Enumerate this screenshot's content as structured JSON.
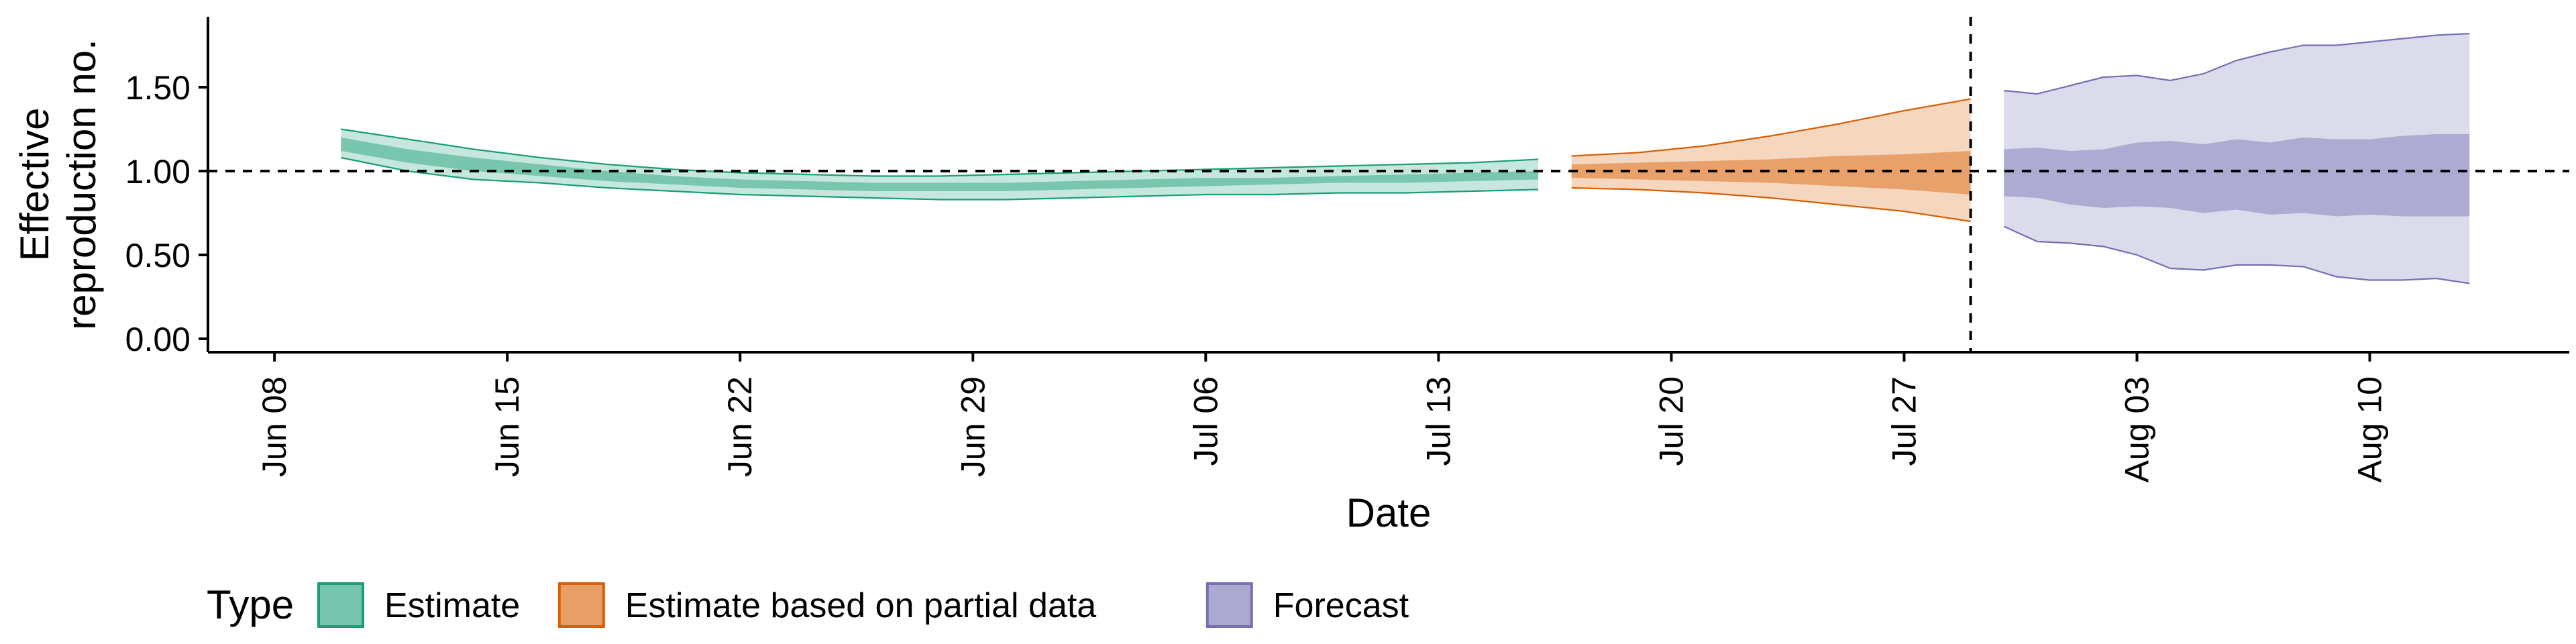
{
  "chart_data": {
    "type": "area",
    "xlabel": "Date",
    "ylabel_lines": [
      "Effective",
      "reproduction no."
    ],
    "x_range": [
      "2020-06-06",
      "2020-08-16"
    ],
    "ylim": [
      -0.08,
      1.92
    ],
    "x_ticks": [
      {
        "date": "2020-06-08",
        "label": "Jun 08"
      },
      {
        "date": "2020-06-15",
        "label": "Jun 15"
      },
      {
        "date": "2020-06-22",
        "label": "Jun 22"
      },
      {
        "date": "2020-06-29",
        "label": "Jun 29"
      },
      {
        "date": "2020-07-06",
        "label": "Jul 06"
      },
      {
        "date": "2020-07-13",
        "label": "Jul 13"
      },
      {
        "date": "2020-07-20",
        "label": "Jul 20"
      },
      {
        "date": "2020-07-27",
        "label": "Jul 27"
      },
      {
        "date": "2020-08-03",
        "label": "Aug 03"
      },
      {
        "date": "2020-08-10",
        "label": "Aug 10"
      }
    ],
    "y_ticks": [
      {
        "value": 0.0,
        "label": "0.00"
      },
      {
        "value": 0.5,
        "label": "0.50"
      },
      {
        "value": 1.0,
        "label": "1.00"
      },
      {
        "value": 1.5,
        "label": "1.50"
      }
    ],
    "reference_hline": 1.0,
    "reference_vline_date": "2020-07-29",
    "grid": false,
    "legend_position": "bottom-left",
    "legend_title": "Type",
    "series": [
      {
        "name": "Estimate",
        "fill": "#1b9e77",
        "x": [
          "2020-06-10",
          "2020-06-12",
          "2020-06-14",
          "2020-06-16",
          "2020-06-18",
          "2020-06-20",
          "2020-06-22",
          "2020-06-24",
          "2020-06-26",
          "2020-06-28",
          "2020-06-30",
          "2020-07-02",
          "2020-07-04",
          "2020-07-06",
          "2020-07-08",
          "2020-07-10",
          "2020-07-12",
          "2020-07-14",
          "2020-07-16"
        ],
        "lower_90": [
          1.08,
          1.0,
          0.95,
          0.93,
          0.9,
          0.88,
          0.86,
          0.85,
          0.84,
          0.83,
          0.83,
          0.84,
          0.85,
          0.86,
          0.86,
          0.87,
          0.87,
          0.88,
          0.89
        ],
        "upper_90": [
          1.25,
          1.19,
          1.13,
          1.08,
          1.04,
          1.01,
          0.99,
          0.98,
          0.97,
          0.97,
          0.98,
          0.99,
          1.0,
          1.01,
          1.02,
          1.03,
          1.04,
          1.05,
          1.07
        ],
        "lower_50": [
          1.12,
          1.05,
          1.0,
          0.97,
          0.94,
          0.92,
          0.9,
          0.89,
          0.88,
          0.88,
          0.88,
          0.89,
          0.9,
          0.91,
          0.92,
          0.93,
          0.93,
          0.94,
          0.95
        ],
        "upper_50": [
          1.2,
          1.13,
          1.08,
          1.04,
          1.0,
          0.97,
          0.95,
          0.94,
          0.93,
          0.93,
          0.93,
          0.94,
          0.95,
          0.96,
          0.96,
          0.97,
          0.98,
          0.99,
          1.0
        ]
      },
      {
        "name": "Estimate based on partial data",
        "fill": "#d95f02",
        "x": [
          "2020-07-17",
          "2020-07-19",
          "2020-07-21",
          "2020-07-23",
          "2020-07-25",
          "2020-07-27",
          "2020-07-29"
        ],
        "lower_90": [
          0.9,
          0.89,
          0.87,
          0.84,
          0.8,
          0.76,
          0.7
        ],
        "upper_90": [
          1.09,
          1.11,
          1.15,
          1.21,
          1.28,
          1.36,
          1.43
        ],
        "lower_50": [
          0.96,
          0.95,
          0.94,
          0.93,
          0.91,
          0.89,
          0.86
        ],
        "upper_50": [
          1.04,
          1.05,
          1.06,
          1.07,
          1.09,
          1.1,
          1.12
        ]
      },
      {
        "name": "Forecast",
        "fill": "#7570b3",
        "x": [
          "2020-07-30",
          "2020-07-31",
          "2020-08-01",
          "2020-08-02",
          "2020-08-03",
          "2020-08-04",
          "2020-08-05",
          "2020-08-06",
          "2020-08-07",
          "2020-08-08",
          "2020-08-09",
          "2020-08-10",
          "2020-08-11",
          "2020-08-12",
          "2020-08-13"
        ],
        "lower_90": [
          0.67,
          0.58,
          0.57,
          0.55,
          0.5,
          0.42,
          0.41,
          0.44,
          0.44,
          0.43,
          0.37,
          0.35,
          0.35,
          0.36,
          0.33
        ],
        "upper_90": [
          1.48,
          1.46,
          1.51,
          1.56,
          1.57,
          1.54,
          1.58,
          1.66,
          1.71,
          1.75,
          1.75,
          1.77,
          1.79,
          1.81,
          1.82
        ],
        "lower_50": [
          0.85,
          0.84,
          0.8,
          0.78,
          0.79,
          0.78,
          0.75,
          0.77,
          0.74,
          0.75,
          0.73,
          0.74,
          0.73,
          0.73,
          0.73
        ],
        "upper_50": [
          1.13,
          1.14,
          1.12,
          1.13,
          1.17,
          1.18,
          1.16,
          1.19,
          1.17,
          1.2,
          1.19,
          1.19,
          1.21,
          1.22,
          1.22
        ]
      }
    ]
  }
}
